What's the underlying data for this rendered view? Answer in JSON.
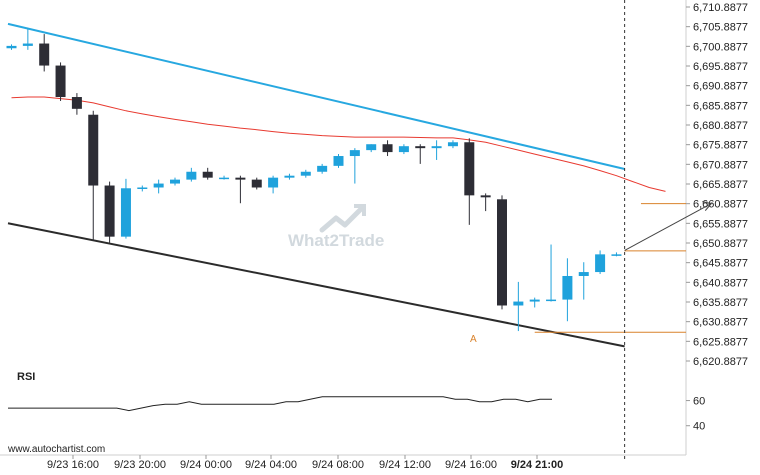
{
  "chart_data": {
    "type": "candlestick",
    "price_axis": {
      "min": 6620.8877,
      "max": 6710.8877,
      "ticks": [
        "6,710.8877",
        "6,705.8877",
        "6,700.8877",
        "6,695.8877",
        "6,690.8877",
        "6,685.8877",
        "6,680.8877",
        "6,675.8877",
        "6,670.8877",
        "6,665.8877",
        "6,660.8877",
        "6,655.8877",
        "6,650.8877",
        "6,645.8877",
        "6,640.8877",
        "6,635.8877",
        "6,630.8877",
        "6,625.8877",
        "6,620.8877"
      ]
    },
    "time_labels": [
      "9/23 16:00",
      "9/23 20:00",
      "9/24 00:00",
      "9/24 04:00",
      "9/24 08:00",
      "9/24 12:00",
      "9/24 16:00",
      "9/24 21:00"
    ],
    "candles": [
      {
        "o": 6700.4,
        "h": 6701.4,
        "l": 6700.0,
        "c": 6701.0
      },
      {
        "o": 6701.0,
        "h": 6705.4,
        "l": 6700.0,
        "c": 6701.6
      },
      {
        "o": 6701.6,
        "h": 6704.0,
        "l": 6694.5,
        "c": 6696.0
      },
      {
        "o": 6696.0,
        "h": 6696.8,
        "l": 6687.0,
        "c": 6688.0
      },
      {
        "o": 6688.0,
        "h": 6689.0,
        "l": 6683.5,
        "c": 6685.0
      },
      {
        "o": 6683.5,
        "h": 6684.5,
        "l": 6651.5,
        "c": 6665.5
      },
      {
        "o": 6665.5,
        "h": 6666.5,
        "l": 6651.0,
        "c": 6652.5
      },
      {
        "o": 6652.5,
        "h": 6667.2,
        "l": 6652.0,
        "c": 6664.8
      },
      {
        "o": 6664.8,
        "h": 6665.5,
        "l": 6664.0,
        "c": 6665.0
      },
      {
        "o": 6665.0,
        "h": 6667.0,
        "l": 6663.5,
        "c": 6666.0
      },
      {
        "o": 6666.0,
        "h": 6667.5,
        "l": 6665.5,
        "c": 6667.0
      },
      {
        "o": 6667.0,
        "h": 6670.0,
        "l": 6666.5,
        "c": 6669.0
      },
      {
        "o": 6669.0,
        "h": 6670.0,
        "l": 6667.0,
        "c": 6667.5
      },
      {
        "o": 6667.5,
        "h": 6668.0,
        "l": 6667.0,
        "c": 6667.5
      },
      {
        "o": 6667.5,
        "h": 6668.0,
        "l": 6661.0,
        "c": 6667.0
      },
      {
        "o": 6667.0,
        "h": 6667.5,
        "l": 6664.5,
        "c": 6665.0
      },
      {
        "o": 6665.0,
        "h": 6668.0,
        "l": 6663.5,
        "c": 6667.5
      },
      {
        "o": 6667.5,
        "h": 6668.5,
        "l": 6667.0,
        "c": 6668.0
      },
      {
        "o": 6668.0,
        "h": 6669.5,
        "l": 6667.5,
        "c": 6669.0
      },
      {
        "o": 6669.0,
        "h": 6671.0,
        "l": 6668.5,
        "c": 6670.5
      },
      {
        "o": 6670.5,
        "h": 6673.5,
        "l": 6670.0,
        "c": 6673.0
      },
      {
        "o": 6673.0,
        "h": 6675.0,
        "l": 6666.0,
        "c": 6674.5
      },
      {
        "o": 6674.5,
        "h": 6676.0,
        "l": 6674.0,
        "c": 6676.0
      },
      {
        "o": 6676.0,
        "h": 6677.0,
        "l": 6673.0,
        "c": 6674.0
      },
      {
        "o": 6674.0,
        "h": 6676.0,
        "l": 6673.5,
        "c": 6675.5
      },
      {
        "o": 6675.5,
        "h": 6676.0,
        "l": 6671.0,
        "c": 6675.0
      },
      {
        "o": 6675.0,
        "h": 6677.0,
        "l": 6672.0,
        "c": 6675.5
      },
      {
        "o": 6675.5,
        "h": 6677.0,
        "l": 6675.0,
        "c": 6676.5
      },
      {
        "o": 6676.5,
        "h": 6677.5,
        "l": 6655.5,
        "c": 6663.0
      },
      {
        "o": 6663.0,
        "h": 6663.5,
        "l": 6659.0,
        "c": 6662.5
      },
      {
        "o": 6662.0,
        "h": 6663.0,
        "l": 6634.0,
        "c": 6635.0
      },
      {
        "o": 6635.0,
        "h": 6641.0,
        "l": 6628.5,
        "c": 6636.0
      },
      {
        "o": 6636.0,
        "h": 6637.0,
        "l": 6634.5,
        "c": 6636.5
      },
      {
        "o": 6636.5,
        "h": 6650.5,
        "l": 6636.0,
        "c": 6636.5
      },
      {
        "o": 6636.5,
        "h": 6647.0,
        "l": 6631.0,
        "c": 6642.5
      },
      {
        "o": 6642.5,
        "h": 6646.0,
        "l": 6636.5,
        "c": 6643.5
      },
      {
        "o": 6643.5,
        "h": 6649.0,
        "l": 6643.0,
        "c": 6648.0
      },
      {
        "o": 6648.0,
        "h": 6648.5,
        "l": 6647.5,
        "c": 6648.0
      }
    ],
    "moving_average": [
      6687.8,
      6688.0,
      6688.0,
      6687.6,
      6687.2,
      6686.5,
      6685.5,
      6684.5,
      6683.7,
      6683.0,
      6682.3,
      6681.7,
      6681.1,
      6680.6,
      6680.1,
      6679.7,
      6679.2,
      6678.8,
      6678.5,
      6678.2,
      6678.0,
      6677.8,
      6677.8,
      6677.8,
      6677.8,
      6677.7,
      6677.6,
      6677.6,
      6677.1,
      6676.5,
      6675.5,
      6674.5,
      6673.5,
      6672.5,
      6671.5,
      6670.5,
      6669.3,
      6668.0,
      6666.5,
      6665.0,
      6664.0
    ],
    "pattern": {
      "name": "descending channel",
      "upper_line": [
        [
          0,
          6706.6
        ],
        [
          37.5,
          6669.7
        ]
      ],
      "lower_line": [
        [
          0,
          6655.9
        ],
        [
          37.5,
          6624.6
        ]
      ]
    },
    "levels": [
      {
        "label": "resistance",
        "value": 6660.9,
        "from": 38.5,
        "to": 47
      },
      {
        "label": "breakout",
        "value": 6648.9,
        "from": 37.5,
        "to": 47
      },
      {
        "label": "support",
        "value": 6628.2,
        "from": 32,
        "to": 47
      }
    ],
    "forecast_arrow": {
      "from": [
        37.5,
        6649.0
      ],
      "to": [
        42.8,
        6660.9
      ]
    },
    "point_label": "A",
    "rsi": {
      "label": "RSI",
      "levels": [
        60,
        40
      ],
      "values": [
        54,
        54,
        54,
        54,
        54,
        54,
        54,
        54,
        54,
        54,
        52,
        54,
        56,
        57,
        57,
        59,
        57,
        57,
        57,
        57,
        57,
        57,
        57,
        59,
        59,
        61,
        63,
        63,
        63,
        63,
        63,
        63,
        63,
        63,
        63,
        63,
        63,
        61,
        61,
        59,
        59,
        61,
        61,
        59,
        61,
        61
      ]
    },
    "vertical_line_index": 37.5,
    "watermark": "What2Trade",
    "site": "www.autochartist.com"
  },
  "colors": {
    "bull": "#1fa2dc",
    "bear": "#2d2d35",
    "channel_upper": "#27a8e0",
    "channel_lower": "#2b2b2b",
    "ma": "#e83a30",
    "level": "#d9822b",
    "arrow": "#444444",
    "grid": "#e0e0e0",
    "point_label": "#d9822b"
  }
}
